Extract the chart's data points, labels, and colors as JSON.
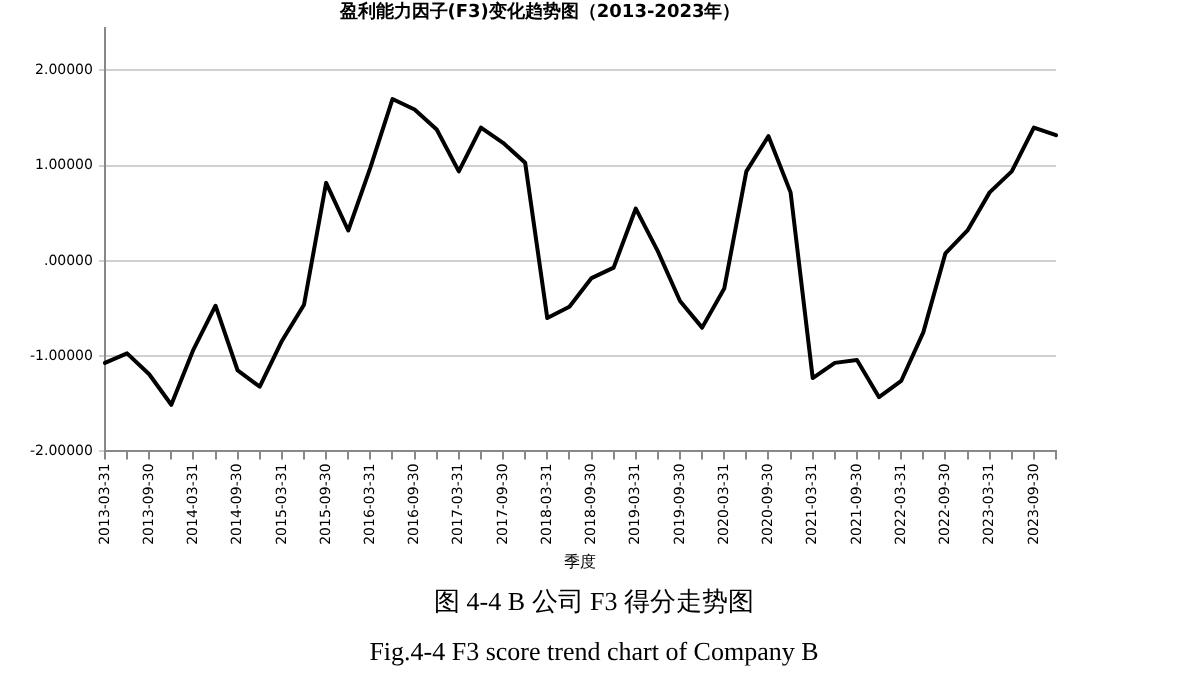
{
  "chart_data": {
    "type": "line",
    "title": "盈利能力因子(F3)变化趋势图（2013-2023年）",
    "xlabel": "季度",
    "categories": [
      "2013-03-31",
      null,
      "2013-09-30",
      null,
      "2014-03-31",
      null,
      "2014-09-30",
      null,
      "2015-03-31",
      null,
      "2015-09-30",
      null,
      "2016-03-31",
      null,
      "2016-09-30",
      null,
      "2017-03-31",
      null,
      "2017-09-30",
      null,
      "2018-03-31",
      null,
      "2018-09-30",
      null,
      "2019-03-31",
      null,
      "2019-09-30",
      null,
      "2020-03-31",
      null,
      "2020-09-30",
      null,
      "2021-03-31",
      null,
      "2021-09-30",
      null,
      "2022-03-31",
      null,
      "2022-09-30",
      null,
      "2023-03-31",
      null,
      "2023-09-30",
      null
    ],
    "series": [
      {
        "color": "#000000",
        "values": [
          -1.07,
          -0.97,
          -1.19,
          -1.51,
          -0.93,
          -0.47,
          -1.15,
          -1.32,
          -0.84,
          -0.46,
          0.82,
          0.32,
          0.98,
          1.7,
          1.59,
          1.38,
          0.94,
          1.4,
          1.24,
          1.03,
          -0.6,
          -0.48,
          -0.18,
          -0.07,
          0.55,
          0.1,
          -0.42,
          -0.7,
          -0.29,
          0.94,
          1.31,
          0.72,
          -1.23,
          -1.07,
          -1.04,
          -1.43,
          -1.26,
          -0.75,
          0.08,
          0.32,
          0.72,
          0.94,
          1.4,
          1.32
        ]
      }
    ],
    "ylim": [
      -2,
      2.45
    ],
    "yticks": [
      {
        "value": -2,
        "label": "-2.00000"
      },
      {
        "value": -1,
        "label": "-1.00000"
      },
      {
        "value": 0,
        "label": ".00000"
      },
      {
        "value": 1,
        "label": "1.00000"
      },
      {
        "value": 2,
        "label": "2.00000"
      }
    ],
    "grid": "y",
    "legend": false,
    "marker": "none",
    "line_style": "solid",
    "annotations": [
      "图 4-4 B 公司 F3 得分走势图",
      "Fig.4-4 F3 score trend chart of Company B"
    ]
  }
}
